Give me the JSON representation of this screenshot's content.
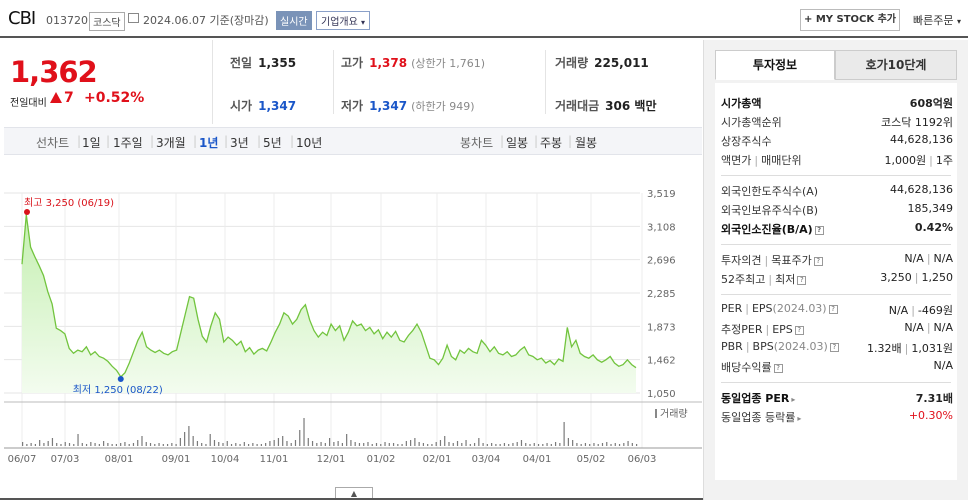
{
  "header": {
    "name": "CBI",
    "code": "013720",
    "market": "코스닥",
    "date": "2024.06.07",
    "date_suffix": "기준(장마감)",
    "live": "실시간",
    "corp_info": "기업개요",
    "mystock": "+ MY STOCK 추가",
    "quick_order": "빠른주문"
  },
  "quote": {
    "price": "1,362",
    "change_label": "전일대비",
    "change": "7",
    "change_pct": "+0.52%"
  },
  "stats": {
    "prev_label": "전일",
    "prev": "1,355",
    "high_label": "고가",
    "high": "1,378",
    "upper": "(상한가 1,761)",
    "volume_label": "거래량",
    "volume": "225,011",
    "open_label": "시가",
    "open": "1,347",
    "low_label": "저가",
    "low": "1,347",
    "lower": "(하한가 949)",
    "amount_label": "거래대금",
    "amount": "306 백만"
  },
  "periods": {
    "line_label": "선차트",
    "line": [
      "1일",
      "1주일",
      "3개월",
      "1년",
      "3년",
      "5년",
      "10년"
    ],
    "active": "1년",
    "candle_label": "봉차트",
    "candle": [
      "일봉",
      "주봉",
      "월봉"
    ]
  },
  "chart_data": {
    "type": "area",
    "y_ticks": [
      "3,519",
      "3,108",
      "2,696",
      "2,285",
      "1,873",
      "1,462",
      "1,050"
    ],
    "ylim": [
      1050,
      3519
    ],
    "x_ticks": [
      "06/07",
      "07/03",
      "08/01",
      "09/01",
      "10/04",
      "11/01",
      "12/01",
      "01/02",
      "02/01",
      "03/04",
      "04/01",
      "05/02",
      "06/03"
    ],
    "high_label": "최고 3,250 (06/19)",
    "low_label": "최저 1,250 (08/22)",
    "volume_label": "거래량",
    "series": [
      {
        "values": [
          2640,
          3250,
          2850,
          2730,
          2620,
          2500,
          2300,
          2150,
          1850,
          1820,
          1780,
          1600,
          1540,
          1580,
          1560,
          1620,
          1520,
          1560,
          1500,
          1480,
          1440,
          1380,
          1330,
          1250,
          1300,
          1420,
          1560,
          1700,
          1800,
          1620,
          1580,
          1550,
          1580,
          1540,
          1520,
          1560,
          1580,
          1800,
          2020,
          2240,
          2220,
          1960,
          1750,
          1680,
          1880,
          2040,
          1960,
          1680,
          1740,
          1700,
          1640,
          1690,
          1560,
          1610,
          1530,
          1580,
          1600,
          1570,
          1680,
          1800,
          1900,
          2040,
          2000,
          1900,
          1960,
          2080,
          2140,
          1950,
          1820,
          1740,
          1800,
          1760,
          1900,
          1820,
          1880,
          1700,
          1800,
          1940,
          1880,
          1900,
          1820,
          1860,
          1780,
          1830,
          1720,
          1800,
          1740,
          1810,
          1700,
          1680,
          1760,
          1820,
          1900,
          1800,
          1640,
          1480,
          1460,
          1400,
          1480,
          1640,
          1500,
          1460,
          1580,
          1540,
          1600,
          1560,
          1540,
          1700,
          1640,
          1560,
          1620,
          1540,
          1520,
          1560,
          1500,
          1520,
          1580,
          1620,
          1520,
          1500,
          1460,
          1480,
          1420,
          1450,
          1400,
          1470,
          1440,
          1860,
          1620,
          1700,
          1540,
          1500,
          1480,
          1520,
          1460,
          1430,
          1460,
          1500,
          1420,
          1380,
          1400,
          1460,
          1400,
          1362
        ]
      }
    ],
    "volume": [
      4,
      2,
      3,
      2,
      6,
      3,
      5,
      8,
      3,
      2,
      4,
      3,
      2,
      12,
      3,
      2,
      4,
      3,
      2,
      5,
      3,
      2,
      2,
      3,
      4,
      2,
      3,
      6,
      10,
      4,
      3,
      2,
      3,
      2,
      2,
      3,
      2,
      8,
      14,
      20,
      10,
      5,
      3,
      2,
      12,
      6,
      4,
      3,
      5,
      2,
      3,
      2,
      4,
      2,
      3,
      2,
      2,
      3,
      5,
      6,
      8,
      10,
      5,
      3,
      6,
      16,
      28,
      8,
      5,
      3,
      4,
      3,
      8,
      4,
      5,
      3,
      12,
      6,
      4,
      3,
      3,
      4,
      2,
      3,
      2,
      4,
      3,
      3,
      2,
      2,
      5,
      6,
      8,
      4,
      3,
      2,
      2,
      4,
      6,
      10,
      4,
      3,
      5,
      3,
      6,
      2,
      3,
      8,
      3,
      2,
      3,
      2,
      2,
      3,
      2,
      3,
      4,
      6,
      3,
      2,
      3,
      2,
      2,
      3,
      2,
      4,
      3,
      24,
      8,
      6,
      3,
      2,
      3,
      2,
      3,
      2,
      3,
      4,
      2,
      3,
      2,
      3,
      5,
      3,
      2
    ]
  },
  "invest": {
    "tabs": [
      "투자정보",
      "호가10단계"
    ],
    "rows1": [
      {
        "k": "시가총액",
        "v": "608억원",
        "bold": true
      },
      {
        "k": "시가총액순위",
        "v": "코스닥 1192위"
      },
      {
        "k": "상장주식수",
        "v": "44,628,136"
      },
      {
        "k": "액면가",
        "k2": "매매단위",
        "v": "1,000원",
        "v2": "1주"
      }
    ],
    "rows2": [
      {
        "k": "외국인한도주식수(A)",
        "v": "44,628,136"
      },
      {
        "k": "외국인보유주식수(B)",
        "v": "185,349"
      },
      {
        "k": "외국인소진율(B/A)",
        "v": "0.42%",
        "bold": true
      }
    ],
    "rows3": [
      {
        "k": "투자의견",
        "k2": "목표주가",
        "v": "N/A",
        "v2": "N/A"
      },
      {
        "k": "52주최고",
        "k2": "최저",
        "v": "3,250",
        "v2": "1,250"
      }
    ],
    "rows4": [
      {
        "k": "PER",
        "k2": "EPS",
        "k2_sub": "(2024.03)",
        "v": "N/A",
        "v2": "-469원"
      },
      {
        "k": "추정PER",
        "k2": "EPS",
        "v": "N/A",
        "v2": "N/A"
      },
      {
        "k": "PBR",
        "k2": "BPS",
        "k2_sub": "(2024.03)",
        "v": "1.32배",
        "v2": "1,031원"
      },
      {
        "k": "배당수익률",
        "v": "N/A"
      }
    ],
    "rows5": [
      {
        "k": "동일업종 PER",
        "v": "7.31배",
        "bold": true
      },
      {
        "k": "동일업종 등락률",
        "v": "+0.30%",
        "up": true
      }
    ]
  }
}
